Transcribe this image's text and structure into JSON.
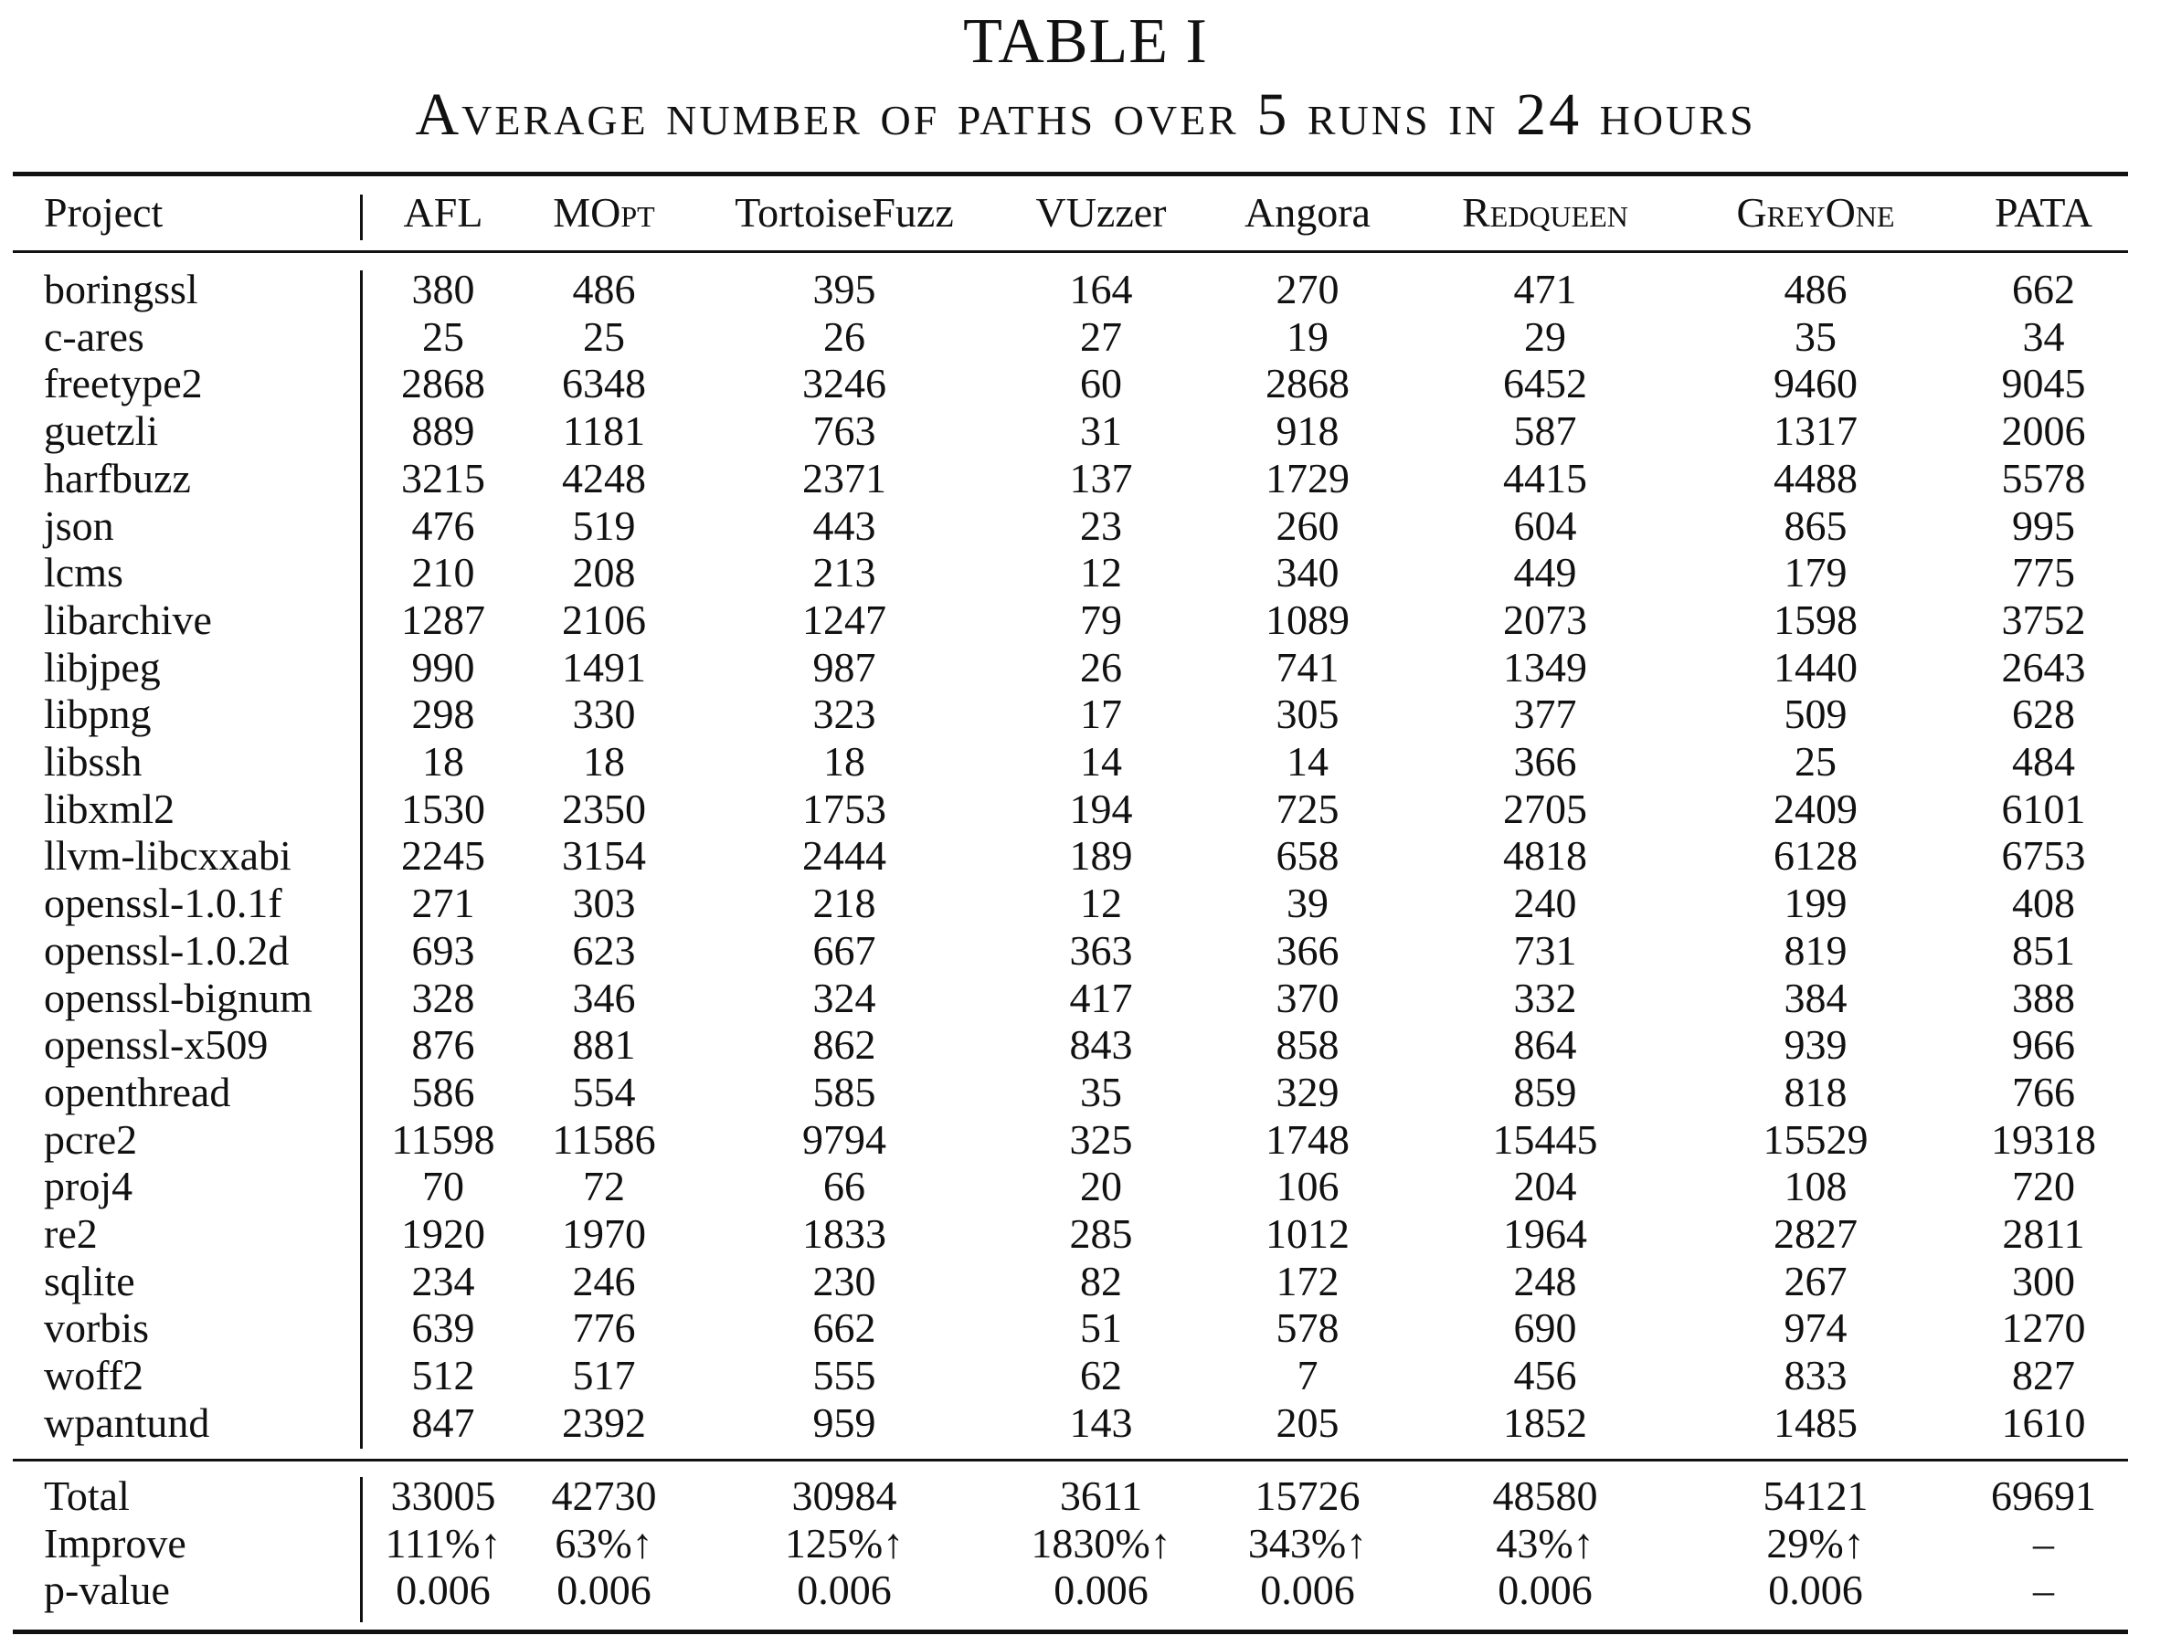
{
  "table": {
    "number": "TABLE I",
    "caption": "Average number of paths over 5 runs in 24 hours",
    "columns": [
      "Project",
      "AFL",
      "MOpt",
      "TortoiseFuzz",
      "VUzzer",
      "Angora",
      "Redqueen",
      "GreyOne",
      "PATA"
    ],
    "rows": [
      [
        "boringssl",
        "380",
        "486",
        "395",
        "164",
        "270",
        "471",
        "486",
        "662"
      ],
      [
        "c-ares",
        "25",
        "25",
        "26",
        "27",
        "19",
        "29",
        "35",
        "34"
      ],
      [
        "freetype2",
        "2868",
        "6348",
        "3246",
        "60",
        "2868",
        "6452",
        "9460",
        "9045"
      ],
      [
        "guetzli",
        "889",
        "1181",
        "763",
        "31",
        "918",
        "587",
        "1317",
        "2006"
      ],
      [
        "harfbuzz",
        "3215",
        "4248",
        "2371",
        "137",
        "1729",
        "4415",
        "4488",
        "5578"
      ],
      [
        "json",
        "476",
        "519",
        "443",
        "23",
        "260",
        "604",
        "865",
        "995"
      ],
      [
        "lcms",
        "210",
        "208",
        "213",
        "12",
        "340",
        "449",
        "179",
        "775"
      ],
      [
        "libarchive",
        "1287",
        "2106",
        "1247",
        "79",
        "1089",
        "2073",
        "1598",
        "3752"
      ],
      [
        "libjpeg",
        "990",
        "1491",
        "987",
        "26",
        "741",
        "1349",
        "1440",
        "2643"
      ],
      [
        "libpng",
        "298",
        "330",
        "323",
        "17",
        "305",
        "377",
        "509",
        "628"
      ],
      [
        "libssh",
        "18",
        "18",
        "18",
        "14",
        "14",
        "366",
        "25",
        "484"
      ],
      [
        "libxml2",
        "1530",
        "2350",
        "1753",
        "194",
        "725",
        "2705",
        "2409",
        "6101"
      ],
      [
        "llvm-libcxxabi",
        "2245",
        "3154",
        "2444",
        "189",
        "658",
        "4818",
        "6128",
        "6753"
      ],
      [
        "openssl-1.0.1f",
        "271",
        "303",
        "218",
        "12",
        "39",
        "240",
        "199",
        "408"
      ],
      [
        "openssl-1.0.2d",
        "693",
        "623",
        "667",
        "363",
        "366",
        "731",
        "819",
        "851"
      ],
      [
        "openssl-bignum",
        "328",
        "346",
        "324",
        "417",
        "370",
        "332",
        "384",
        "388"
      ],
      [
        "openssl-x509",
        "876",
        "881",
        "862",
        "843",
        "858",
        "864",
        "939",
        "966"
      ],
      [
        "openthread",
        "586",
        "554",
        "585",
        "35",
        "329",
        "859",
        "818",
        "766"
      ],
      [
        "pcre2",
        "11598",
        "11586",
        "9794",
        "325",
        "1748",
        "15445",
        "15529",
        "19318"
      ],
      [
        "proj4",
        "70",
        "72",
        "66",
        "20",
        "106",
        "204",
        "108",
        "720"
      ],
      [
        "re2",
        "1920",
        "1970",
        "1833",
        "285",
        "1012",
        "1964",
        "2827",
        "2811"
      ],
      [
        "sqlite",
        "234",
        "246",
        "230",
        "82",
        "172",
        "248",
        "267",
        "300"
      ],
      [
        "vorbis",
        "639",
        "776",
        "662",
        "51",
        "578",
        "690",
        "974",
        "1270"
      ],
      [
        "woff2",
        "512",
        "517",
        "555",
        "62",
        "7",
        "456",
        "833",
        "827"
      ],
      [
        "wpantund",
        "847",
        "2392",
        "959",
        "143",
        "205",
        "1852",
        "1485",
        "1610"
      ]
    ],
    "summary": [
      [
        "Total",
        "33005",
        "42730",
        "30984",
        "3611",
        "15726",
        "48580",
        "54121",
        "69691"
      ],
      [
        "Improve",
        "111%↑",
        "63%↑",
        "125%↑",
        "1830%↑",
        "343%↑",
        "43%↑",
        "29%↑",
        "–"
      ],
      [
        "p-value",
        "0.006",
        "0.006",
        "0.006",
        "0.006",
        "0.006",
        "0.006",
        "0.006",
        "–"
      ]
    ]
  }
}
